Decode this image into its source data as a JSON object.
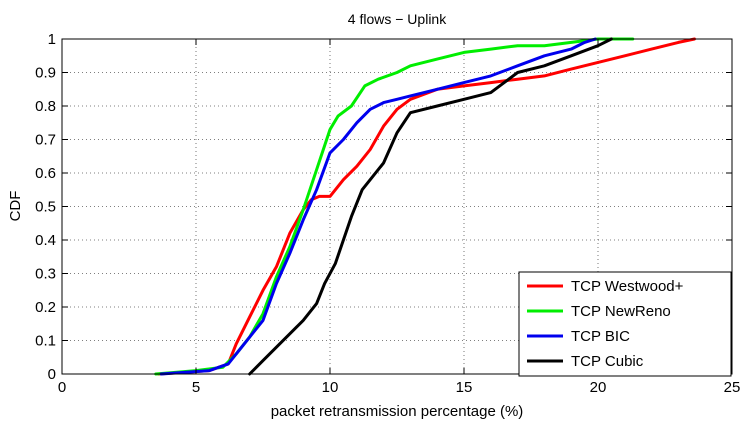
{
  "chart_data": {
    "type": "line",
    "title": "4 flows − Uplink",
    "xlabel": "packet retransmission percentage (%)",
    "ylabel": "CDF",
    "xlim": [
      0,
      25
    ],
    "ylim": [
      0,
      1
    ],
    "xticks": [
      0,
      5,
      10,
      15,
      20,
      25
    ],
    "yticks": [
      0,
      0.1,
      0.2,
      0.3,
      0.4,
      0.5,
      0.6,
      0.7,
      0.8,
      0.9,
      1
    ],
    "xtick_labels": [
      "0",
      "5",
      "10",
      "15",
      "20",
      "25"
    ],
    "ytick_labels": [
      "0",
      "0.1",
      "0.2",
      "0.3",
      "0.4",
      "0.5",
      "0.6",
      "0.7",
      "0.8",
      "0.9",
      "1"
    ],
    "grid": true,
    "legend_position": "bottom-right",
    "series": [
      {
        "name": "TCP Westwood+",
        "color": "#ff0000",
        "x": [
          3.6,
          5.5,
          6.2,
          6.5,
          7.0,
          7.5,
          8.0,
          8.5,
          9.0,
          9.3,
          9.6,
          10.0,
          10.5,
          11.0,
          11.5,
          12.0,
          12.5,
          13.0,
          14.0,
          15.0,
          16.0,
          17.0,
          18.0,
          19.0,
          20.0,
          21.0,
          22.0,
          23.0,
          23.6
        ],
        "y": [
          0.0,
          0.01,
          0.03,
          0.09,
          0.17,
          0.25,
          0.32,
          0.42,
          0.49,
          0.52,
          0.53,
          0.53,
          0.58,
          0.62,
          0.67,
          0.74,
          0.79,
          0.82,
          0.85,
          0.86,
          0.87,
          0.88,
          0.89,
          0.91,
          0.93,
          0.95,
          0.97,
          0.99,
          1.0
        ]
      },
      {
        "name": "TCP NewReno",
        "color": "#00ee00",
        "x": [
          3.5,
          5.0,
          6.0,
          6.5,
          7.0,
          7.5,
          8.0,
          8.5,
          9.0,
          9.5,
          10.0,
          10.3,
          10.8,
          11.3,
          11.8,
          12.5,
          13.0,
          14.0,
          15.0,
          16.0,
          17.0,
          18.0,
          19.0,
          20.0,
          21.0,
          21.3
        ],
        "y": [
          0.0,
          0.01,
          0.02,
          0.06,
          0.11,
          0.18,
          0.29,
          0.38,
          0.49,
          0.61,
          0.73,
          0.77,
          0.8,
          0.86,
          0.88,
          0.9,
          0.92,
          0.94,
          0.96,
          0.97,
          0.98,
          0.98,
          0.99,
          1.0,
          1.0,
          1.0
        ]
      },
      {
        "name": "TCP BIC",
        "color": "#0000ee",
        "x": [
          3.7,
          5.5,
          6.2,
          6.8,
          7.5,
          8.0,
          8.5,
          9.0,
          9.5,
          10.0,
          10.5,
          11.0,
          11.5,
          12.0,
          12.5,
          13.0,
          14.0,
          15.0,
          16.0,
          17.0,
          18.0,
          19.0,
          19.5,
          19.9
        ],
        "y": [
          0.0,
          0.01,
          0.03,
          0.09,
          0.16,
          0.27,
          0.36,
          0.46,
          0.55,
          0.66,
          0.7,
          0.75,
          0.79,
          0.81,
          0.82,
          0.83,
          0.85,
          0.87,
          0.89,
          0.92,
          0.95,
          0.97,
          0.99,
          1.0
        ]
      },
      {
        "name": "TCP Cubic",
        "color": "#000000",
        "x": [
          7.0,
          7.5,
          8.0,
          8.5,
          9.0,
          9.5,
          9.8,
          10.2,
          10.5,
          10.8,
          11.2,
          11.5,
          12.0,
          12.5,
          13.0,
          14.0,
          15.0,
          16.0,
          16.5,
          17.0,
          18.0,
          19.0,
          20.0,
          20.5
        ],
        "y": [
          0.0,
          0.04,
          0.08,
          0.12,
          0.16,
          0.21,
          0.27,
          0.33,
          0.4,
          0.47,
          0.55,
          0.58,
          0.63,
          0.72,
          0.78,
          0.8,
          0.82,
          0.84,
          0.87,
          0.9,
          0.92,
          0.95,
          0.98,
          1.0
        ]
      }
    ]
  }
}
